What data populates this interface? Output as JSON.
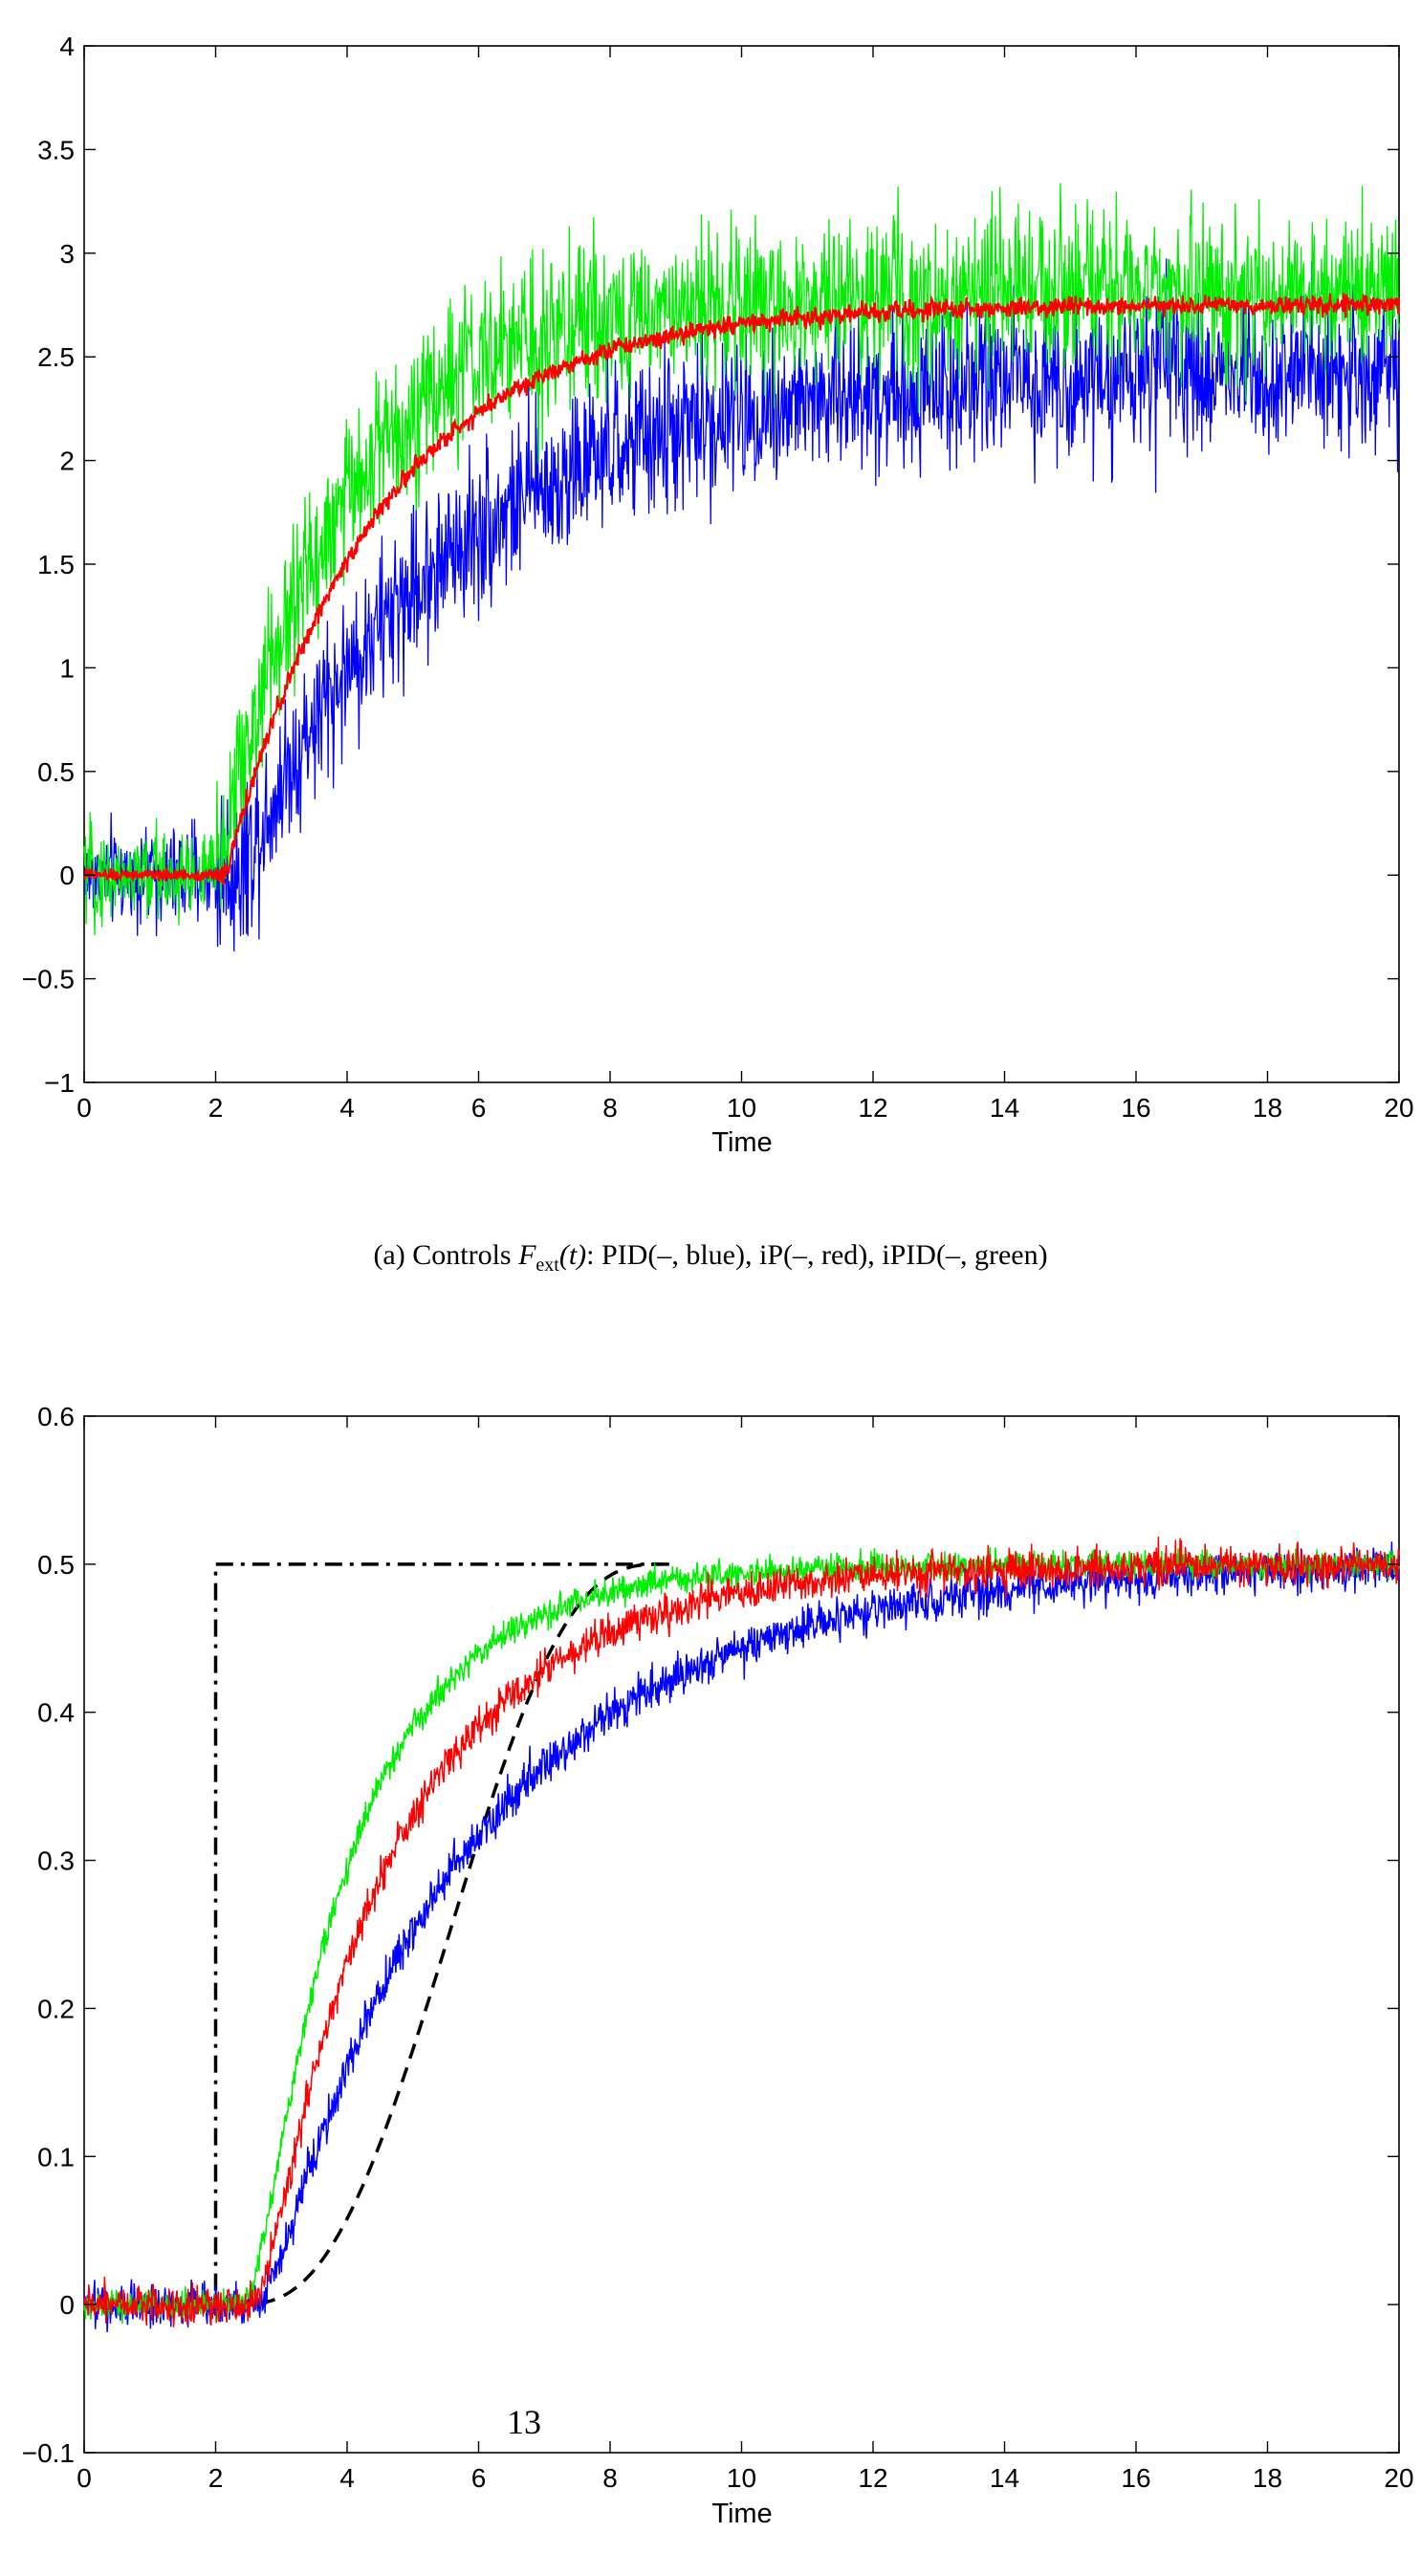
{
  "caption": {
    "prefix": "(a) Controls",
    "math_symbol": "F",
    "math_sub": "ext",
    "math_arg": "(t)",
    "rest": ": PID(–, blue), iP(–, red), iPID(–, green)"
  },
  "page_number": "13",
  "colors": {
    "pid": "#0000ff",
    "ip": "#ff0000",
    "ipid": "#00ee00",
    "reference": "#000000"
  },
  "chart_data": [
    {
      "type": "line",
      "xlabel": "Time",
      "ylabel": "",
      "xlim": [
        0,
        20
      ],
      "ylim": [
        -1,
        4
      ],
      "x_ticks": [
        "0",
        "2",
        "4",
        "6",
        "8",
        "10",
        "12",
        "14",
        "16",
        "18",
        "20"
      ],
      "y_ticks": [
        "-1",
        "-0.5",
        "0",
        "0.5",
        "1",
        "1.5",
        "2",
        "2.5",
        "3",
        "3.5",
        "4"
      ],
      "grid": false,
      "series": [
        {
          "name": "PID",
          "color": "#0000ff",
          "t_step": 2.0,
          "final": 2.45,
          "tau": 3.2,
          "lag": 0.35,
          "noise": 0.38
        },
        {
          "name": "iP",
          "color": "#ff0000",
          "t_step": 2.0,
          "final": 2.75,
          "tau": 2.3,
          "lag": 0.15,
          "noise": 0.045
        },
        {
          "name": "iPID",
          "color": "#00ee00",
          "t_step": 2.0,
          "final": 2.8,
          "tau": 1.9,
          "lag": 0.0,
          "noise": 0.38
        }
      ]
    },
    {
      "type": "line",
      "xlabel": "Time",
      "ylabel": "",
      "xlim": [
        0,
        20
      ],
      "ylim": [
        -0.1,
        0.6
      ],
      "x_ticks": [
        "0",
        "2",
        "4",
        "6",
        "8",
        "10",
        "12",
        "14",
        "16",
        "18",
        "20"
      ],
      "y_ticks": [
        "-0.1",
        "0",
        "0.1",
        "0.2",
        "0.3",
        "0.4",
        "0.5",
        "0.6"
      ],
      "grid": false,
      "reference_step": {
        "points": [
          [
            0,
            0
          ],
          [
            2,
            0
          ],
          [
            2,
            0.5
          ],
          [
            9,
            0.5
          ]
        ],
        "style": "dash-dot"
      },
      "reference_trajectory": {
        "t0": 2.3,
        "t1": 8.8,
        "final": 0.5,
        "style": "dashed"
      },
      "series": [
        {
          "name": "PID",
          "color": "#0000ff",
          "final": 0.5,
          "t0": 2.6,
          "tau": 3.4,
          "noise": 0.018
        },
        {
          "name": "iP",
          "color": "#ff0000",
          "final": 0.5,
          "t0": 2.5,
          "tau": 2.3,
          "noise": 0.016
        },
        {
          "name": "iPID",
          "color": "#00ee00",
          "final": 0.5,
          "t0": 2.4,
          "tau": 1.7,
          "noise": 0.012
        }
      ]
    }
  ]
}
